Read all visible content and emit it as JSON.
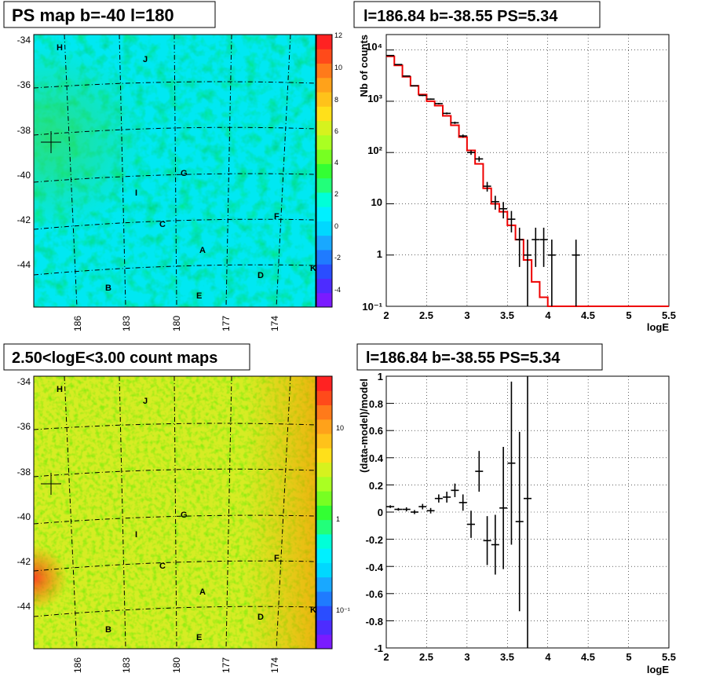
{
  "panels": {
    "map1": {
      "title": "PS map b=-40 l=180",
      "b_ticks": [
        "-34",
        "-36",
        "-38",
        "-40",
        "-42",
        "-44"
      ],
      "l_ticks": [
        "186",
        "183",
        "180",
        "177",
        "174"
      ],
      "colorbar": {
        "scale": "linear",
        "range": [
          -5,
          12
        ],
        "ticks": [
          "12",
          "10",
          "8",
          "6",
          "4",
          "2",
          "0",
          "-2",
          "-4"
        ]
      },
      "labels": [
        "H",
        "J",
        "G",
        "I",
        "F",
        "C",
        "A",
        "D",
        "K",
        "B",
        "E"
      ]
    },
    "map2": {
      "title": "2.50<logE<3.00 count maps",
      "b_ticks": [
        "-34",
        "-36",
        "-38",
        "-40",
        "-42",
        "-44"
      ],
      "l_ticks": [
        "186",
        "183",
        "180",
        "177",
        "174"
      ],
      "colorbar": {
        "scale": "log",
        "ticks": [
          "10",
          "1",
          "10⁻¹"
        ]
      },
      "labels": [
        "H",
        "J",
        "G",
        "I",
        "F",
        "C",
        "A",
        "D",
        "K",
        "B",
        "E"
      ]
    }
  },
  "chart_data": [
    {
      "type": "line",
      "title": "l=186.84 b=-38.55 PS=5.34",
      "xlabel": "logE",
      "ylabel": "Nb of counts",
      "xlim": [
        2,
        5.5
      ],
      "ylim": [
        0.1,
        20000
      ],
      "yscale": "log",
      "grid": true,
      "x_ticks": [
        "2",
        "2.5",
        "3",
        "3.5",
        "4",
        "4.5",
        "5",
        "5.5"
      ],
      "y_ticks": [
        "10⁻¹",
        "1",
        "10",
        "10²",
        "10³",
        "10⁴"
      ],
      "series": [
        {
          "style": "points-with-errorbars",
          "x": [
            2.05,
            2.15,
            2.25,
            2.35,
            2.45,
            2.55,
            2.65,
            2.75,
            2.85,
            2.95,
            3.05,
            3.15,
            3.25,
            3.35,
            3.45,
            3.55,
            3.65,
            3.75,
            3.85,
            3.95,
            4.05,
            4.35
          ],
          "y": [
            7800,
            5200,
            3100,
            2000,
            1300,
            1100,
            900,
            580,
            380,
            210,
            100,
            75,
            22,
            11,
            8,
            5,
            2,
            1,
            2,
            2,
            1,
            1
          ]
        },
        {
          "style": "step-model",
          "color": "#ee0000",
          "edges": [
            2.0,
            2.1,
            2.2,
            2.3,
            2.4,
            2.5,
            2.6,
            2.7,
            2.8,
            2.9,
            3.0,
            3.1,
            3.2,
            3.3,
            3.4,
            3.5,
            3.6,
            3.7,
            3.8,
            3.9,
            4.0,
            4.1,
            5.5
          ],
          "values": [
            7500,
            5000,
            3000,
            2000,
            1350,
            1000,
            820,
            520,
            340,
            200,
            110,
            60,
            20,
            10,
            7,
            3.8,
            2,
            0.8,
            0.3,
            0.15,
            0.1,
            0.1
          ]
        }
      ]
    },
    {
      "type": "scatter",
      "title": "l=186.84 b=-38.55 PS=5.34",
      "xlabel": "logE",
      "ylabel": "(data-model)/model",
      "xlim": [
        2,
        5.5
      ],
      "ylim": [
        -1,
        1
      ],
      "grid": true,
      "x_ticks": [
        "2",
        "2.5",
        "3",
        "3.5",
        "4",
        "4.5",
        "5",
        "5.5"
      ],
      "y_ticks": [
        "1",
        "0.8",
        "0.6",
        "0.4",
        "0.2",
        "0",
        "-0.2",
        "-0.4",
        "-0.6",
        "-0.8",
        "-1"
      ],
      "series": [
        {
          "style": "points-with-errorbars",
          "x": [
            2.05,
            2.15,
            2.25,
            2.35,
            2.45,
            2.55,
            2.65,
            2.75,
            2.85,
            2.95,
            3.05,
            3.15,
            3.25,
            3.35,
            3.45,
            3.55,
            3.65,
            3.75
          ],
          "y": [
            0.04,
            0.02,
            0.02,
            0.0,
            0.04,
            0.01,
            0.1,
            0.11,
            0.16,
            0.07,
            -0.09,
            0.3,
            -0.21,
            -0.24,
            0.03,
            0.36,
            -0.07,
            0.1
          ],
          "err": [
            0.01,
            0.01,
            0.015,
            0.015,
            0.02,
            0.02,
            0.03,
            0.04,
            0.05,
            0.06,
            0.1,
            0.15,
            0.18,
            0.22,
            0.45,
            0.6,
            0.66,
            1.2
          ]
        }
      ]
    }
  ]
}
